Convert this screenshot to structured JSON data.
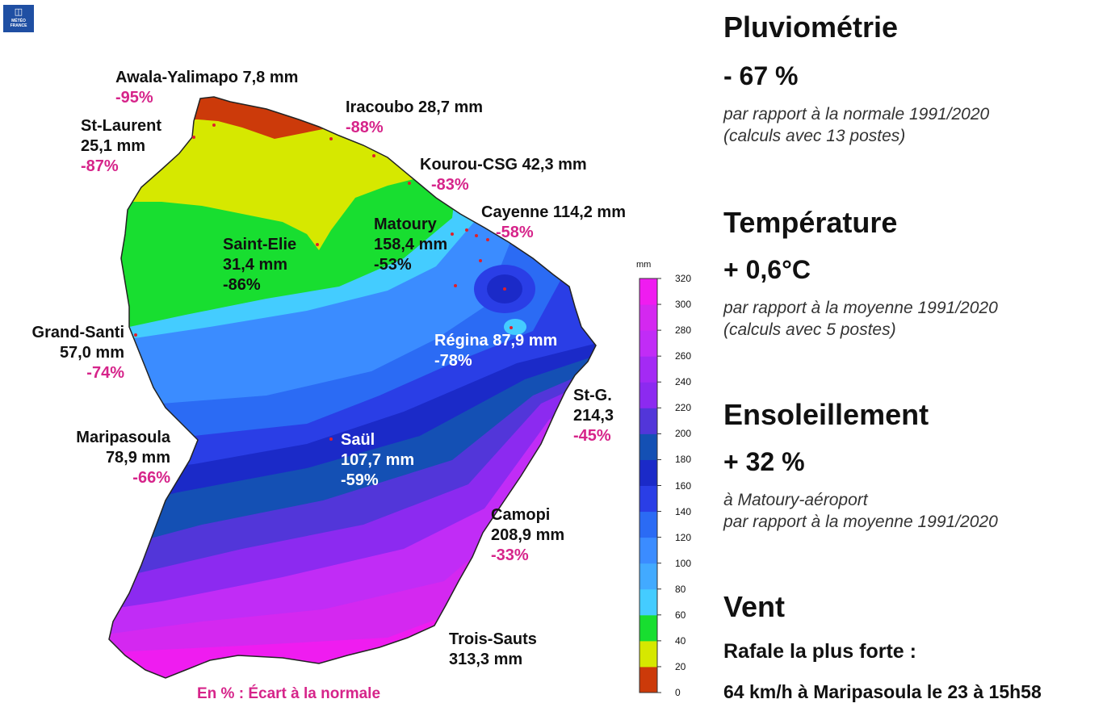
{
  "logo": {
    "text": "MÉTÉO FRANCE"
  },
  "stations": [
    {
      "id": "awala",
      "name": "Awala-Yalimapo 7,8 mm",
      "pct": "-95%"
    },
    {
      "id": "stlaurent",
      "name": "St-Laurent",
      "name2": "25,1 mm",
      "pct": "-87%"
    },
    {
      "id": "iracoubo",
      "name": "Iracoubo 28,7 mm",
      "pct": "-88%"
    },
    {
      "id": "kourou",
      "name": "Kourou-CSG 42,3 mm",
      "pct": "-83%"
    },
    {
      "id": "cayenne",
      "name": "Cayenne 114,2 mm",
      "pct": "-58%"
    },
    {
      "id": "matoury",
      "name": "Matoury",
      "name2": "158,4 mm",
      "pct": "-53%"
    },
    {
      "id": "saintelie",
      "name": "Saint-Elie",
      "name2": "31,4 mm",
      "pct": "-86%"
    },
    {
      "id": "grandsanti",
      "name": "Grand-Santi",
      "name2": "57,0 mm",
      "pct": "-74%"
    },
    {
      "id": "regina",
      "name": "Régina 87,9 mm",
      "pct": "-78%"
    },
    {
      "id": "stg",
      "name": "St-G.",
      "name2": "214,3",
      "pct": "-45%"
    },
    {
      "id": "maripasoula",
      "name": "Maripasoula",
      "name2": "78,9 mm",
      "pct": "-66%"
    },
    {
      "id": "saul",
      "name": "Saül",
      "name2": "107,7 mm",
      "pct": "-59%"
    },
    {
      "id": "camopi",
      "name": "Camopi",
      "name2": "208,9 mm",
      "pct": "-33%"
    },
    {
      "id": "troissauts",
      "name": "Trois-Sauts",
      "name2": "313,3 mm"
    }
  ],
  "footnote": "En % : Écart à la normale",
  "colorbar": {
    "unit": "mm",
    "ticks": [
      "0",
      "20",
      "40",
      "60",
      "80",
      "100",
      "120",
      "140",
      "160",
      "180",
      "200",
      "220",
      "240",
      "260",
      "280",
      "300",
      "320"
    ],
    "colors": [
      "#cc3a0a",
      "#d6e800",
      "#18de30",
      "#44ccff",
      "#42aaff",
      "#3b8cff",
      "#2b6bf4",
      "#2a3ee6",
      "#1b2ac8",
      "#1450b4",
      "#5236d9",
      "#8c2af0",
      "#a42af4",
      "#c12cf6",
      "#d428f0",
      "#ef1cf0"
    ]
  },
  "panel": {
    "rain": {
      "title": "Pluviométrie",
      "value": "- 67 %",
      "note1": "par rapport à la normale 1991/2020",
      "note2": "(calculs avec 13 postes)"
    },
    "temp": {
      "title": "Température",
      "value": "+ 0,6°C",
      "note1": "par rapport à la moyenne 1991/2020",
      "note2": "(calculs avec 5 postes)"
    },
    "sun": {
      "title": "Ensoleillement",
      "value": "+ 32 %",
      "note1": "à Matoury-aéroport",
      "note2": "par rapport à la moyenne 1991/2020"
    },
    "wind": {
      "title": "Vent",
      "sub1": "Rafale la plus forte :",
      "sub2": "64 km/h à Maripasoula le 23 à 15h58"
    }
  }
}
